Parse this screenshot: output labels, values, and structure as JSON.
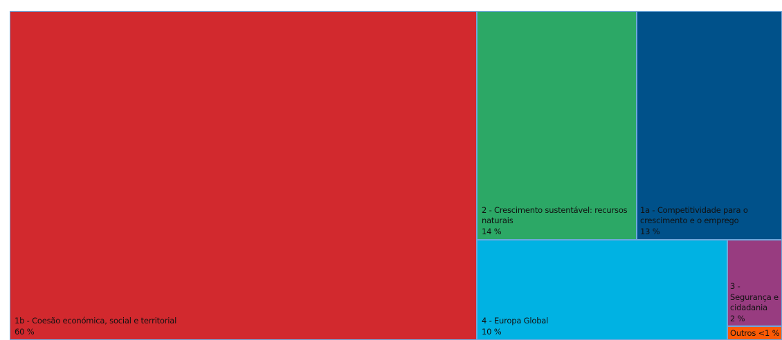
{
  "chart_data": {
    "type": "treemap",
    "items": [
      {
        "label": "1b - Coesão económica, social e territorial",
        "value_label": "60 %",
        "value": 60,
        "color": "#d2292e"
      },
      {
        "label": "2 - Crescimento sustentável: recursos naturais",
        "value_label": "14 %",
        "value": 14,
        "color": "#2ca866"
      },
      {
        "label": "1a - Competitividade para o crescimento e o emprego",
        "value_label": "13 %",
        "value": 13,
        "color": "#00518a"
      },
      {
        "label": "4 - Europa Global",
        "value_label": "10 %",
        "value": 10,
        "color": "#00b2e3"
      },
      {
        "label": "3 - Segurança e cidadania",
        "value_label": "2 %",
        "value": 2,
        "color": "#983c80"
      },
      {
        "label": "Outros",
        "value_label": "<1 %",
        "value": 0.5,
        "color": "#fc5a05"
      }
    ]
  }
}
